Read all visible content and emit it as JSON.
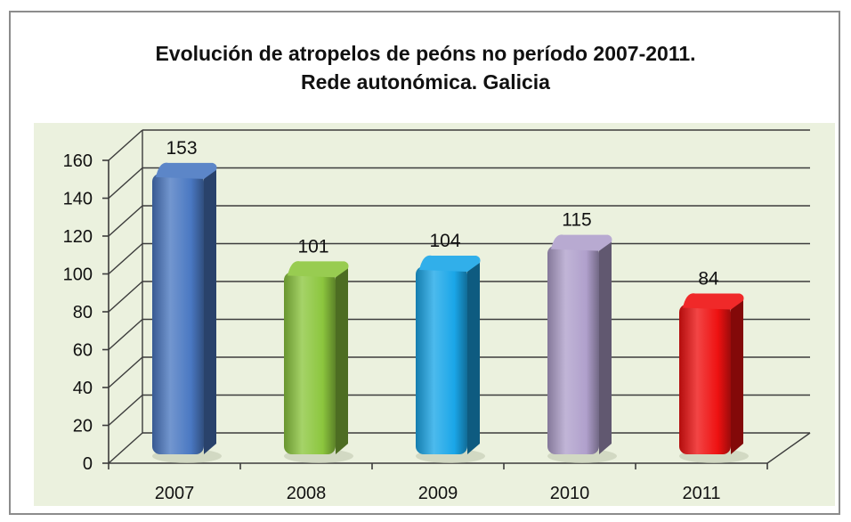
{
  "chart_data": {
    "type": "bar",
    "title": "Evolución de atropelos de peóns no período 2007-2011.",
    "subtitle": "Rede autonómica. Galicia",
    "categories": [
      "2007",
      "2008",
      "2009",
      "2010",
      "2011"
    ],
    "values": [
      153,
      101,
      104,
      115,
      84
    ],
    "data_labels": [
      "153",
      "101",
      "104",
      "115",
      "84"
    ],
    "colors": [
      "#4a78c2",
      "#8cc63e",
      "#1aa6e8",
      "#b0a0cc",
      "#ee1111"
    ],
    "ylim": [
      0,
      160
    ],
    "yticks": [
      0,
      20,
      40,
      60,
      80,
      100,
      120,
      140,
      160
    ],
    "ytick_labels": [
      "0",
      "20",
      "40",
      "60",
      "80",
      "100",
      "120",
      "140",
      "160"
    ],
    "grid": true,
    "plot_background": "#ebf1de",
    "style": "3d-column"
  }
}
